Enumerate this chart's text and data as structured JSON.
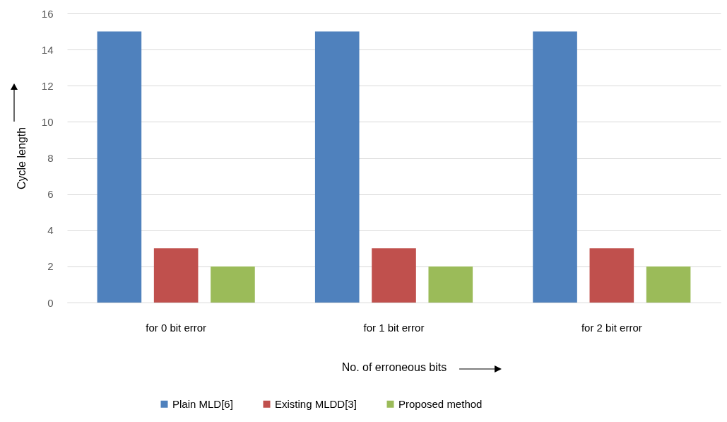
{
  "chart_data": {
    "type": "bar",
    "xlabel": "No. of erroneous bits",
    "ylabel": "Cycle length",
    "categories": [
      "for 0 bit error",
      "for 1 bit error",
      "for 2 bit error"
    ],
    "series": [
      {
        "name": "Plain MLD[6]",
        "color": "#4f81bd",
        "values": [
          15,
          15,
          15
        ]
      },
      {
        "name": "Existing MLDD[3]",
        "color": "#c0504d",
        "values": [
          3,
          3,
          3
        ]
      },
      {
        "name": "Proposed method",
        "color": "#9bbb59",
        "values": [
          2,
          2,
          2
        ]
      }
    ],
    "ylim": [
      0,
      16
    ],
    "yticks": [
      0,
      2,
      4,
      6,
      8,
      10,
      12,
      14,
      16
    ],
    "grid": "y",
    "legend": "bottom"
  }
}
